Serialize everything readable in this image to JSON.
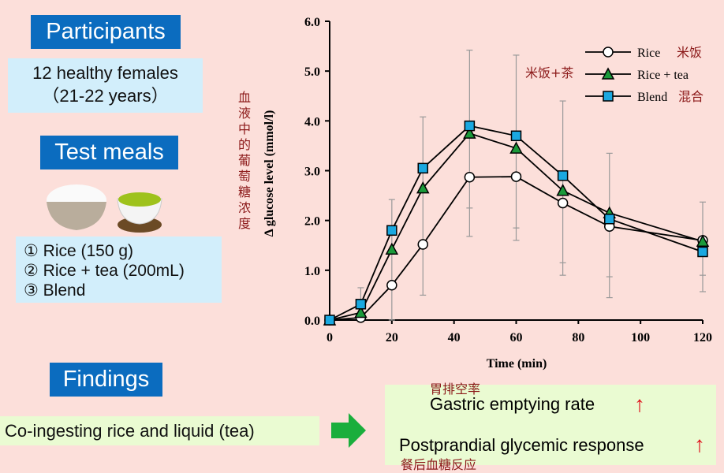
{
  "participants": {
    "header": "Participants",
    "line1": "12 healthy females",
    "line2": "（21-22 years）"
  },
  "test_meals": {
    "header": "Test meals",
    "items": [
      "① Rice (150 g)",
      "② Rice + tea (200mL)",
      "③ Blend"
    ]
  },
  "findings": {
    "header": "Findings",
    "cause": "Co-ingesting rice and liquid (tea)",
    "effect1": "Gastric emptying rate",
    "effect1_cn": "胃排空率",
    "effect2": "Postprandial glycemic response",
    "effect2_cn": "餐后血糖反应",
    "arrow_color": "#e0101a",
    "arrow_right_color": "#1aae3c"
  },
  "ylabel_cn": "血液中的葡萄糖浓度",
  "chart_data": {
    "type": "line",
    "xlabel": "Time (min)",
    "ylabel": "Δ glucose level (mmol/l)",
    "xlim": [
      0,
      120
    ],
    "ylim": [
      0,
      6
    ],
    "xticks": [
      "0",
      "20",
      "40",
      "60",
      "80",
      "100",
      "120"
    ],
    "yticks": [
      "0.0",
      "1.0",
      "2.0",
      "3.0",
      "4.0",
      "5.0",
      "6.0"
    ],
    "x": [
      0,
      10,
      20,
      30,
      45,
      60,
      75,
      90,
      120
    ],
    "legend_position": "top-right",
    "series": [
      {
        "name": "Rice",
        "name_cn": "米饭",
        "marker": "circle",
        "color": "#ffffff",
        "values": [
          0,
          0.05,
          0.7,
          1.52,
          2.87,
          2.88,
          2.35,
          1.88,
          1.6
        ]
      },
      {
        "name": "Rice + tea",
        "name_cn": "米饭+茶",
        "marker": "triangle",
        "color": "#1a9a3a",
        "values": [
          0,
          0.15,
          1.42,
          2.65,
          3.75,
          3.45,
          2.6,
          2.15,
          1.58
        ]
      },
      {
        "name": "Blend",
        "name_cn": "混合",
        "marker": "square",
        "color": "#1aa8e0",
        "values": [
          0,
          0.32,
          1.8,
          3.05,
          3.9,
          3.7,
          2.9,
          2.03,
          1.37
        ]
      }
    ],
    "error_bars": [
      {
        "x": 10,
        "high": 0.65,
        "lows": []
      },
      {
        "x": 20,
        "high": 2.42,
        "lows": [
          0.0
        ]
      },
      {
        "x": 30,
        "high": 4.08,
        "lows": [
          0.5
        ]
      },
      {
        "x": 45,
        "high": 5.42,
        "lows": [
          2.25,
          1.68
        ]
      },
      {
        "x": 60,
        "high": 5.32,
        "lows": [
          1.85,
          1.6
        ]
      },
      {
        "x": 75,
        "high": 4.4,
        "lows": [
          1.15,
          0.9
        ]
      },
      {
        "x": 90,
        "high": 3.35,
        "lows": [
          0.87,
          0.45
        ]
      },
      {
        "x": 120,
        "high": 2.37,
        "lows": [
          0.9,
          0.57
        ]
      }
    ]
  }
}
